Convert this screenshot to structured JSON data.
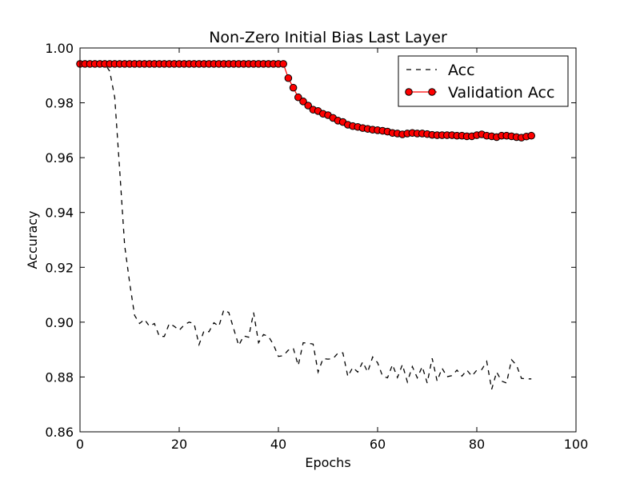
{
  "chart_data": {
    "type": "line",
    "title": "Non-Zero Initial Bias Last Layer",
    "xlabel": "Epochs",
    "ylabel": "Accuracy",
    "xlim": [
      0,
      100
    ],
    "ylim": [
      0.86,
      1.0
    ],
    "xticks": [
      0,
      20,
      40,
      60,
      80,
      100
    ],
    "yticks": [
      0.86,
      0.88,
      0.9,
      0.92,
      0.94,
      0.96,
      0.98,
      1.0
    ],
    "xtick_labels": [
      "0",
      "20",
      "40",
      "60",
      "80",
      "100"
    ],
    "ytick_labels": [
      "0.86",
      "0.88",
      "0.90",
      "0.92",
      "0.94",
      "0.96",
      "0.98",
      "1.00"
    ],
    "grid": false,
    "legend_position": "top-right",
    "series": [
      {
        "name": "Acc",
        "style": "dashed",
        "color": "#000000",
        "x": [
          0,
          1,
          2,
          3,
          4,
          5,
          6,
          7,
          8,
          9,
          10,
          11,
          12,
          13,
          14,
          15,
          16,
          17,
          18,
          19,
          20,
          21,
          22,
          23,
          24,
          25,
          26,
          27,
          28,
          29,
          30,
          31,
          32,
          33,
          34,
          35,
          36,
          37,
          38,
          39,
          40,
          41,
          42,
          43,
          44,
          45,
          46,
          47,
          48,
          49,
          50,
          51,
          52,
          53,
          54,
          55,
          56,
          57,
          58,
          59,
          60,
          61,
          62,
          63,
          64,
          65,
          66,
          67,
          68,
          69,
          70,
          71,
          72,
          73,
          74,
          75,
          76,
          77,
          78,
          79,
          80,
          81,
          82,
          83,
          84,
          85,
          86,
          87,
          88,
          89,
          90,
          91
        ],
        "y": [
          0.9942,
          0.9942,
          0.9942,
          0.9942,
          0.9942,
          0.9942,
          0.9915,
          0.982,
          0.9555,
          0.928,
          0.9145,
          0.9025,
          0.8995,
          0.901,
          0.8985,
          0.8995,
          0.8948,
          0.8948,
          0.8995,
          0.8985,
          0.897,
          0.899,
          0.9,
          0.8995,
          0.8918,
          0.8968,
          0.8965,
          0.8998,
          0.8985,
          0.9045,
          0.9035,
          0.8975,
          0.8915,
          0.895,
          0.8945,
          0.9035,
          0.8925,
          0.8955,
          0.8948,
          0.8918,
          0.8875,
          0.8878,
          0.8898,
          0.8905,
          0.8842,
          0.8925,
          0.8923,
          0.892,
          0.8818,
          0.8867,
          0.8865,
          0.8867,
          0.8887,
          0.8888,
          0.8802,
          0.8835,
          0.8818,
          0.8855,
          0.8818,
          0.8873,
          0.8852,
          0.8803,
          0.8797,
          0.8845,
          0.8798,
          0.8845,
          0.8782,
          0.8838,
          0.8797,
          0.8838,
          0.8778,
          0.8868,
          0.8785,
          0.8832,
          0.8801,
          0.8805,
          0.8825,
          0.8803,
          0.8825,
          0.8803,
          0.8825,
          0.8827,
          0.8857,
          0.8755,
          0.8818,
          0.8785,
          0.8778,
          0.8863,
          0.8843,
          0.8795,
          0.8793,
          0.8793
        ]
      },
      {
        "name": "Validation Acc",
        "style": "solid-markers",
        "color": "#ff0000",
        "x": [
          0,
          1,
          2,
          3,
          4,
          5,
          6,
          7,
          8,
          9,
          10,
          11,
          12,
          13,
          14,
          15,
          16,
          17,
          18,
          19,
          20,
          21,
          22,
          23,
          24,
          25,
          26,
          27,
          28,
          29,
          30,
          31,
          32,
          33,
          34,
          35,
          36,
          37,
          38,
          39,
          40,
          41,
          42,
          43,
          44,
          45,
          46,
          47,
          48,
          49,
          50,
          51,
          52,
          53,
          54,
          55,
          56,
          57,
          58,
          59,
          60,
          61,
          62,
          63,
          64,
          65,
          66,
          67,
          68,
          69,
          70,
          71,
          72,
          73,
          74,
          75,
          76,
          77,
          78,
          79,
          80,
          81,
          82,
          83,
          84,
          85,
          86,
          87,
          88,
          89,
          90,
          91
        ],
        "y": [
          0.9942,
          0.9942,
          0.9942,
          0.9942,
          0.9942,
          0.9942,
          0.9942,
          0.9942,
          0.9942,
          0.9942,
          0.9942,
          0.9942,
          0.9942,
          0.9942,
          0.9942,
          0.9942,
          0.9942,
          0.9942,
          0.9942,
          0.9942,
          0.9942,
          0.9942,
          0.9942,
          0.9942,
          0.9942,
          0.9942,
          0.9942,
          0.9942,
          0.9942,
          0.9942,
          0.9942,
          0.9942,
          0.9942,
          0.9942,
          0.9942,
          0.9942,
          0.9942,
          0.9942,
          0.9942,
          0.9942,
          0.9942,
          0.9942,
          0.989,
          0.9855,
          0.982,
          0.9805,
          0.979,
          0.9775,
          0.977,
          0.976,
          0.9755,
          0.9745,
          0.9735,
          0.973,
          0.972,
          0.9715,
          0.9712,
          0.9708,
          0.9705,
          0.9702,
          0.97,
          0.9698,
          0.9695,
          0.969,
          0.9688,
          0.9685,
          0.9688,
          0.969,
          0.9688,
          0.9688,
          0.9686,
          0.9683,
          0.9682,
          0.9682,
          0.9682,
          0.9682,
          0.968,
          0.968,
          0.9678,
          0.9678,
          0.9682,
          0.9685,
          0.968,
          0.9678,
          0.9675,
          0.968,
          0.968,
          0.9678,
          0.9675,
          0.9673,
          0.9677,
          0.968
        ]
      }
    ]
  }
}
